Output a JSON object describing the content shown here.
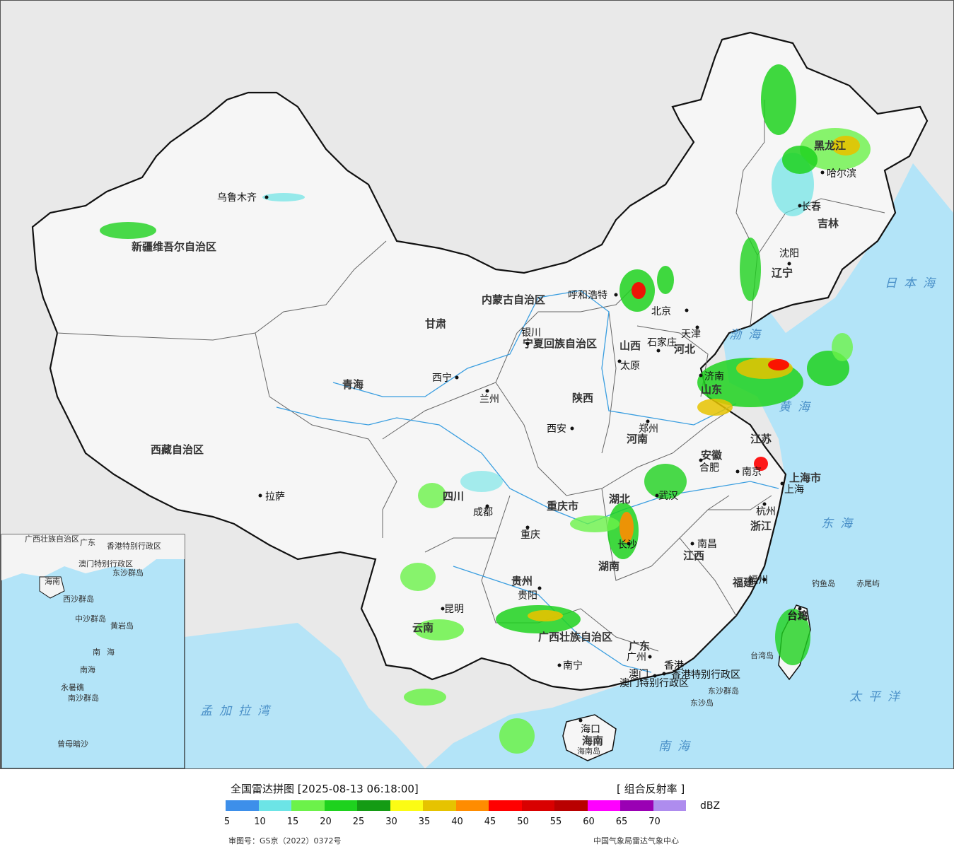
{
  "legend": {
    "title": "全国雷达拼图 [2025-08-13 06:18:00]",
    "product": "[ 组合反射率 ]",
    "unit": "dBZ",
    "colors": [
      "#3d8fea",
      "#6ce4e6",
      "#6cf24a",
      "#1ed21e",
      "#149b14",
      "#fcfc14",
      "#e6c300",
      "#ff8c00",
      "#ff0000",
      "#d90000",
      "#b90000",
      "#ff00ff",
      "#9a00b4",
      "#ae8cee"
    ],
    "ticks": [
      "5",
      "10",
      "15",
      "20",
      "25",
      "30",
      "35",
      "40",
      "45",
      "50",
      "55",
      "60",
      "65",
      "70"
    ],
    "approval": "审图号：GS京（2022）0372号",
    "agency": "中国气象局雷达气象中心"
  },
  "map": {
    "colors": {
      "ocean": "#b3e4f8",
      "land": "#f4f4f4",
      "foreign": "#e6e6e6",
      "border": "#111111",
      "river": "#3a9ee0"
    },
    "provinces": [
      "新疆维吾尔自治区",
      "西藏自治区",
      "青海",
      "甘肃",
      "内蒙古自治区",
      "黑龙江",
      "吉林",
      "辽宁",
      "河北",
      "山西",
      "陕西",
      "河南",
      "山东",
      "江苏",
      "安徽",
      "湖北",
      "湖南",
      "江西",
      "浙江",
      "福建",
      "广东",
      "广西壮族自治区",
      "贵州",
      "云南",
      "四川",
      "重庆市",
      "上海市",
      "台湾",
      "海南",
      "宁夏回族自治区"
    ],
    "cities": [
      "乌鲁木齐",
      "拉萨",
      "西宁",
      "兰州",
      "银川",
      "呼和浩特",
      "北京",
      "天津",
      "石家庄",
      "太原",
      "济南",
      "郑州",
      "西安",
      "成都",
      "重庆",
      "贵阳",
      "昆明",
      "南宁",
      "广州",
      "长沙",
      "武汉",
      "南昌",
      "合肥",
      "南京",
      "上海",
      "杭州",
      "福州",
      "台北",
      "哈尔滨",
      "长春",
      "沈阳",
      "香港",
      "澳门",
      "海口"
    ],
    "seas": [
      "日本海",
      "渤海",
      "黄海",
      "东海",
      "太平洋",
      "南海",
      "孟加拉湾"
    ],
    "islands": [
      "钓鱼岛",
      "赤尾屿",
      "台湾岛",
      "东沙群岛",
      "东沙岛",
      "海南岛"
    ],
    "special": [
      "香港特别行政区",
      "澳门特别行政区"
    ],
    "inset": {
      "labels": [
        "广西壮族自治区",
        "广东",
        "海南",
        "南海",
        "香港特别行政区",
        "澳门特别行政区",
        "东沙群岛",
        "西沙群岛",
        "中沙群岛",
        "黄岩岛",
        "南沙群岛",
        "曾母暗沙",
        "永暑礁"
      ]
    }
  }
}
